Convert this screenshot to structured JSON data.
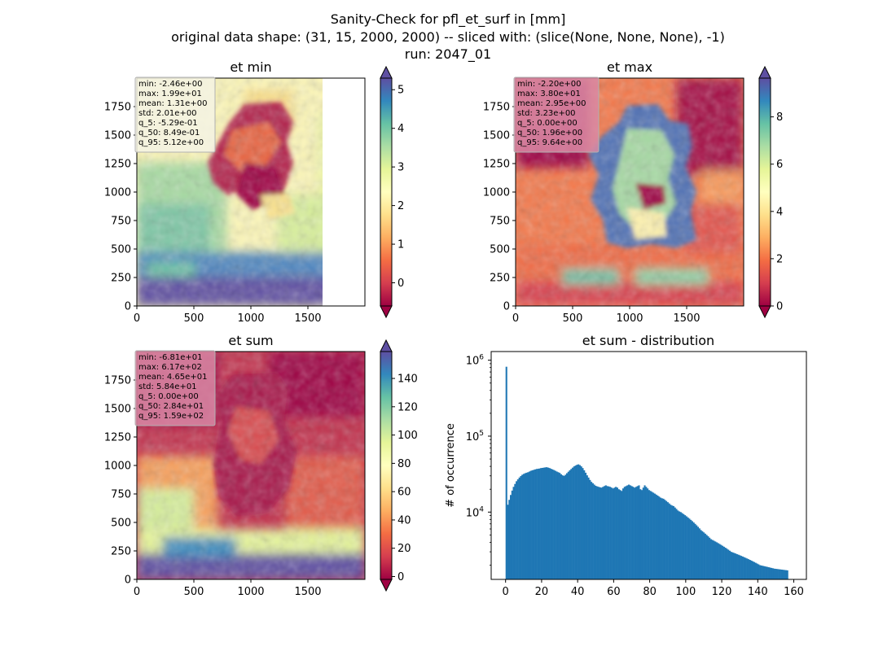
{
  "title_lines": [
    "Sanity-Check for pfl_et_surf in [mm]",
    "original data shape: (31, 15, 2000, 2000) -- sliced with: (slice(None, None, None), -1)",
    "run: 2047_01"
  ],
  "colors": {
    "stats_box_light": "#f5f3e4",
    "stats_box_pink": "#d98aa4",
    "hist_bar": "#1f77b4",
    "colormap": "Spectral"
  },
  "chart_data": [
    {
      "type": "heatmap",
      "title": "et min",
      "xlim": [
        0,
        2000
      ],
      "ylim": [
        0,
        2000
      ],
      "xticks": [
        0,
        500,
        1000,
        1500
      ],
      "yticks": [
        0,
        250,
        500,
        750,
        1000,
        1250,
        1500,
        1750
      ],
      "colorbar": {
        "min": -0.6,
        "max": 5.3,
        "ticks": [
          0,
          1,
          2,
          3,
          4,
          5
        ],
        "extend": "both"
      },
      "stats": [
        "min: -2.46e+00",
        "max: 1.99e+01",
        "mean: 1.31e+00",
        "std: 2.01e+00",
        "q_5: -5.29e-01",
        "q_50: 8.49e-01",
        "q_95: 5.12e+00"
      ],
      "stats_box": "light"
    },
    {
      "type": "heatmap",
      "title": "et max",
      "xlim": [
        0,
        2000
      ],
      "ylim": [
        0,
        2000
      ],
      "xticks": [
        0,
        500,
        1000,
        1500
      ],
      "yticks": [
        0,
        250,
        500,
        750,
        1000,
        1250,
        1500,
        1750
      ],
      "colorbar": {
        "min": 0,
        "max": 9.64,
        "ticks": [
          0,
          2,
          4,
          6,
          8
        ],
        "extend": "both"
      },
      "stats": [
        "min: -2.20e+00",
        "max: 3.80e+01",
        "mean: 2.95e+00",
        "std: 3.23e+00",
        "q_5: 0.00e+00",
        "q_50: 1.96e+00",
        "q_95: 9.64e+00"
      ],
      "stats_box": "pink"
    },
    {
      "type": "heatmap",
      "title": "et sum",
      "xlim": [
        0,
        2000
      ],
      "ylim": [
        0,
        2000
      ],
      "xticks": [
        0,
        500,
        1000,
        1500
      ],
      "yticks": [
        0,
        250,
        500,
        750,
        1000,
        1250,
        1500,
        1750
      ],
      "colorbar": {
        "min": -2,
        "max": 159,
        "ticks": [
          0,
          20,
          40,
          60,
          80,
          100,
          120,
          140
        ],
        "extend": "both"
      },
      "stats": [
        "min: -6.81e+01",
        "max: 6.17e+02",
        "mean: 4.65e+01",
        "std: 5.84e+01",
        "q_5: 0.00e+00",
        "q_50: 2.84e+01",
        "q_95: 1.59e+02"
      ],
      "stats_box": "pink"
    },
    {
      "type": "bar",
      "title": "et sum - distribution",
      "ylabel": "# of occurrence",
      "yscale": "log",
      "xlim": [
        -8,
        167
      ],
      "ylim": [
        1300,
        1300000
      ],
      "xticks": [
        0,
        20,
        40,
        60,
        80,
        100,
        120,
        140,
        160
      ],
      "yticks": [
        10000,
        100000,
        1000000
      ],
      "yticklabels": [
        [
          "10",
          "4"
        ],
        [
          "10",
          "5"
        ],
        [
          "10",
          "6"
        ]
      ],
      "bin_start": 0,
      "bin_width": 0.8,
      "values": [
        820000,
        12500,
        14500,
        16800,
        19200,
        21500,
        23500,
        25500,
        27000,
        28500,
        29800,
        31000,
        31800,
        32500,
        33000,
        33500,
        34200,
        35000,
        35500,
        36000,
        36500,
        37000,
        37200,
        37500,
        38000,
        38200,
        38500,
        38800,
        39000,
        38500,
        38000,
        37200,
        36500,
        35800,
        35000,
        34200,
        33500,
        32800,
        31500,
        30500,
        30000,
        31000,
        32500,
        34000,
        35500,
        37000,
        38500,
        40000,
        41000,
        42000,
        42500,
        41500,
        40000,
        38000,
        35500,
        33000,
        30500,
        28500,
        26500,
        25000,
        24000,
        23000,
        22200,
        21800,
        21500,
        21200,
        21000,
        21500,
        22000,
        22500,
        22000,
        21800,
        21500,
        21000,
        20500,
        21000,
        21500,
        21000,
        20000,
        19500,
        19000,
        20500,
        21500,
        22000,
        22500,
        23000,
        22500,
        22000,
        21500,
        21000,
        21500,
        22000,
        22500,
        20000,
        19500,
        21000,
        22500,
        21500,
        20500,
        19500,
        19000,
        18500,
        18000,
        17500,
        17000,
        16500,
        16000,
        15500,
        15200,
        15000,
        14500,
        14000,
        13500,
        13000,
        12500,
        12200,
        12000,
        11500,
        11000,
        10500,
        10200,
        10000,
        9700,
        9400,
        9100,
        8800,
        8500,
        8200,
        7900,
        7600,
        7300,
        7000,
        6700,
        6400,
        6100,
        5800,
        5600,
        5400,
        5200,
        5000,
        4800,
        4600,
        4400,
        4300,
        4200,
        4100,
        4000,
        3900,
        3800,
        3700,
        3600,
        3500,
        3400,
        3300,
        3200,
        3100,
        3000,
        2950,
        2900,
        2850,
        2800,
        2750,
        2700,
        2650,
        2600,
        2550,
        2500,
        2450,
        2400,
        2350,
        2300,
        2250,
        2200,
        2150,
        2100,
        2050,
        2000,
        1980,
        1960,
        1940,
        1920,
        1900,
        1880,
        1860,
        1840,
        1820,
        1800,
        1790,
        1780,
        1770,
        1760,
        1750,
        1740,
        1730,
        1720,
        1710
      ]
    }
  ]
}
